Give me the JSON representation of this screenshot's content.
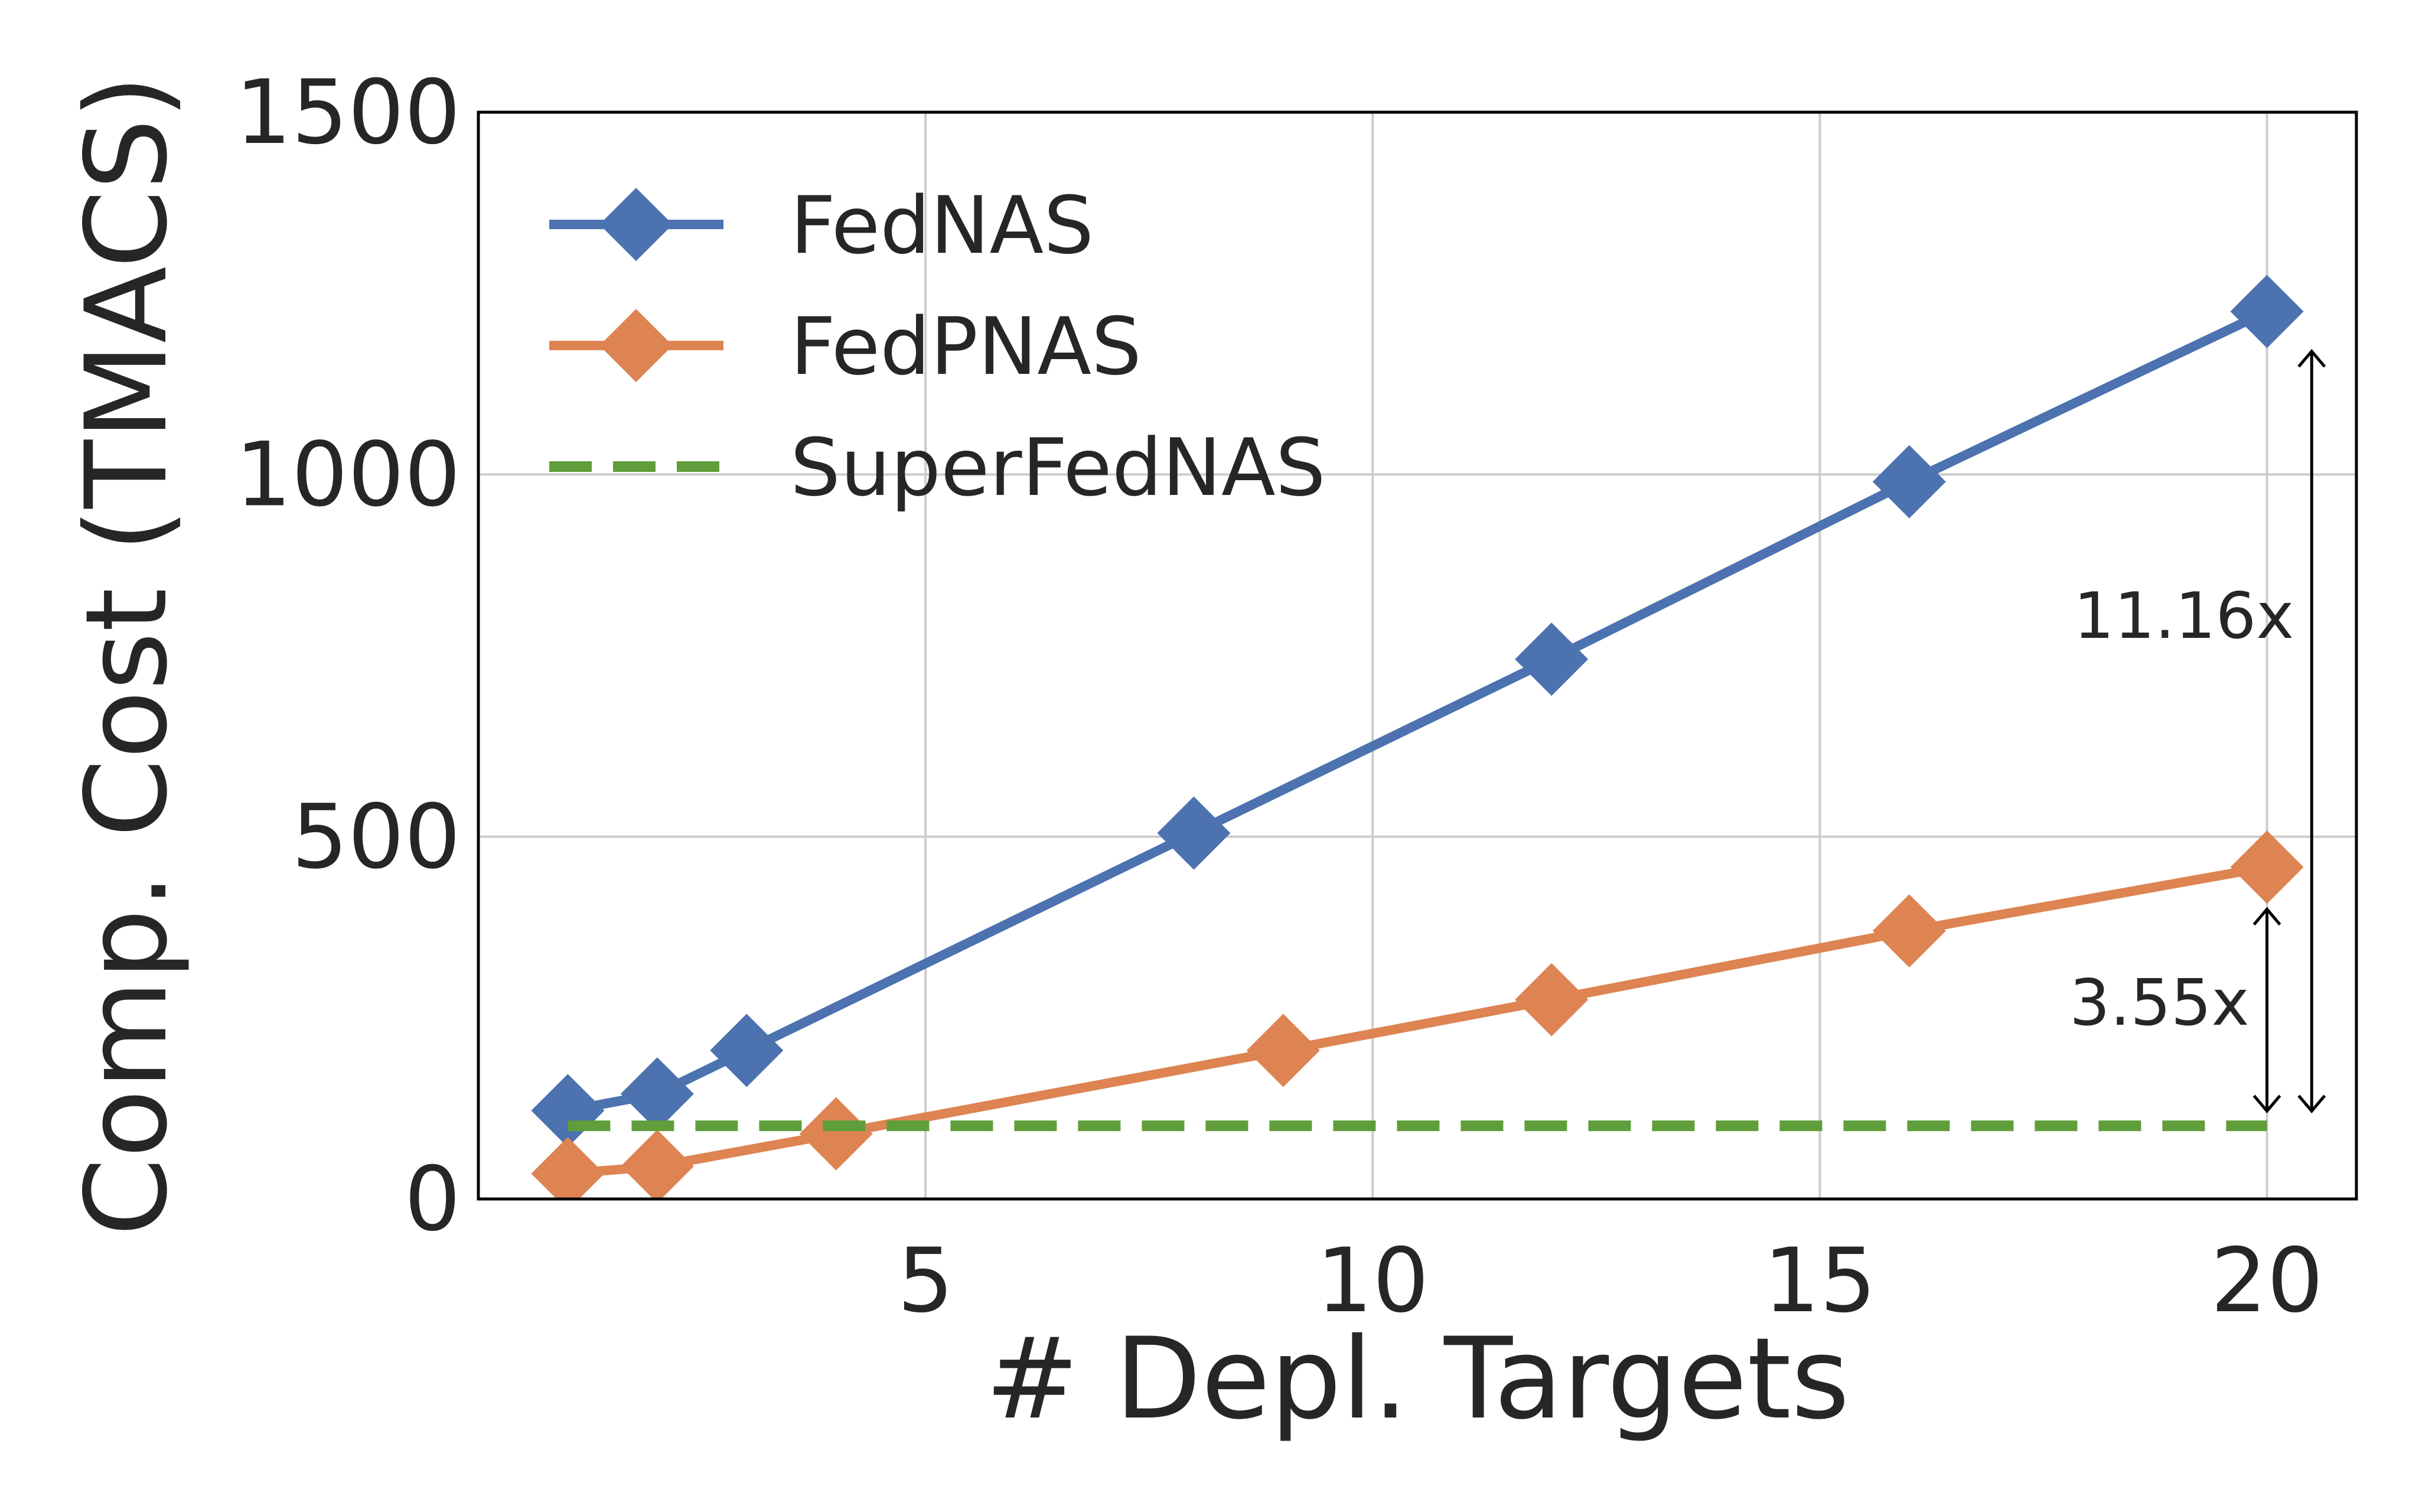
{
  "chart_data": {
    "type": "line",
    "xlabel": "# Depl. Targets",
    "ylabel": "Comp. Cost (TMACS)",
    "xlim": [
      0,
      21
    ],
    "ylim": [
      0,
      1500
    ],
    "xticks": [
      5,
      10,
      15,
      20
    ],
    "yticks": [
      0,
      500,
      1000,
      1500
    ],
    "grid": true,
    "legend_position": "top-left",
    "series": [
      {
        "name": "FedNAS",
        "color": "#4c72b0",
        "marker": "diamond",
        "linestyle": "solid",
        "x": [
          1,
          2,
          3,
          8,
          12,
          16,
          20
        ],
        "y": [
          122,
          145,
          205,
          505,
          745,
          990,
          1225
        ]
      },
      {
        "name": "FedPNAS",
        "color": "#dd8452",
        "marker": "diamond",
        "linestyle": "solid",
        "x": [
          1,
          2,
          4,
          9,
          12,
          16,
          20
        ],
        "y": [
          35,
          45,
          90,
          205,
          275,
          370,
          458
        ]
      },
      {
        "name": "SuperFedNAS",
        "color": "#5f9e3a",
        "marker": "none",
        "linestyle": "dashed",
        "x": [
          1,
          20
        ],
        "y": [
          101,
          101
        ]
      }
    ],
    "annotations": [
      {
        "text": "11.16x",
        "x": 20.5,
        "y_from": 101,
        "y_to": 1170
      },
      {
        "text": "3.55x",
        "x": 20.0,
        "y_from": 101,
        "y_to": 400
      }
    ]
  }
}
